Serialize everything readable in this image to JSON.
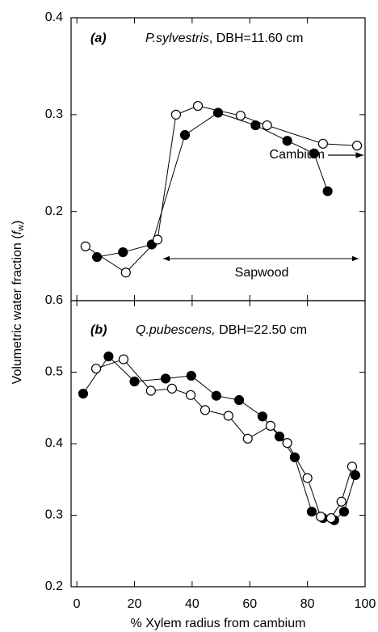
{
  "chart_data": [
    {
      "type": "line",
      "panel_label": "(a)",
      "title_italic": "P.sylvestris",
      "title_rest": ", DBH=11.60 cm",
      "ylabel": {
        "text": "Volumetric water fraction (",
        "symbol": "f",
        "subscript": "w",
        "close": ")"
      },
      "annotations": {
        "cambium": "Cambium",
        "sapwood": "Sapwood"
      },
      "xlim": [
        -2,
        100
      ],
      "xticks": [
        0,
        20,
        40,
        60,
        80,
        100
      ],
      "ylim": [
        0.108,
        0.4
      ],
      "yticks": [
        0.2,
        0.3,
        0.4
      ],
      "series": [
        {
          "marker": "filled",
          "color": "#000000",
          "x": [
            7,
            16,
            26,
            37.5,
            49,
            62,
            73,
            82.3,
            87
          ],
          "values": [
            0.153,
            0.158,
            0.166,
            0.279,
            0.302,
            0.289,
            0.273,
            0.26,
            0.221
          ]
        },
        {
          "marker": "open",
          "color": "#000000",
          "x": [
            3,
            17,
            28,
            34.4,
            42,
            56.8,
            66,
            85.4,
            97.2
          ],
          "values": [
            0.164,
            0.137,
            0.171,
            0.3,
            0.309,
            0.299,
            0.289,
            0.27,
            0.268
          ]
        }
      ]
    },
    {
      "type": "line",
      "panel_label": "(b)",
      "title_italic": "Q.pubescens,",
      "title_rest": " DBH=22.50 cm",
      "xlabel": "% Xylem radius from cambium",
      "xlim": [
        -2,
        100
      ],
      "xticks": [
        0,
        20,
        40,
        60,
        80,
        100
      ],
      "ylim": [
        0.2,
        0.6
      ],
      "yticks": [
        0.2,
        0.3,
        0.4,
        0.5,
        0.6
      ],
      "series": [
        {
          "marker": "filled",
          "color": "#000000",
          "x": [
            2.2,
            11,
            20,
            30.8,
            39.7,
            48.4,
            56.3,
            64.4,
            70.3,
            75.6,
            81.5,
            85.4,
            89.3,
            92.7,
            96.6
          ],
          "values": [
            0.47,
            0.522,
            0.487,
            0.491,
            0.495,
            0.467,
            0.461,
            0.438,
            0.41,
            0.381,
            0.305,
            0.296,
            0.293,
            0.305,
            0.356
          ]
        },
        {
          "marker": "open",
          "color": "#000000",
          "x": [
            6.7,
            16.2,
            25.7,
            33,
            39.5,
            44.5,
            52.6,
            59.3,
            67.2,
            73,
            80,
            84.6,
            88.2,
            91.8,
            95.5
          ],
          "values": [
            0.505,
            0.518,
            0.474,
            0.477,
            0.468,
            0.447,
            0.439,
            0.407,
            0.425,
            0.401,
            0.352,
            0.298,
            0.296,
            0.319,
            0.368
          ]
        }
      ]
    }
  ]
}
